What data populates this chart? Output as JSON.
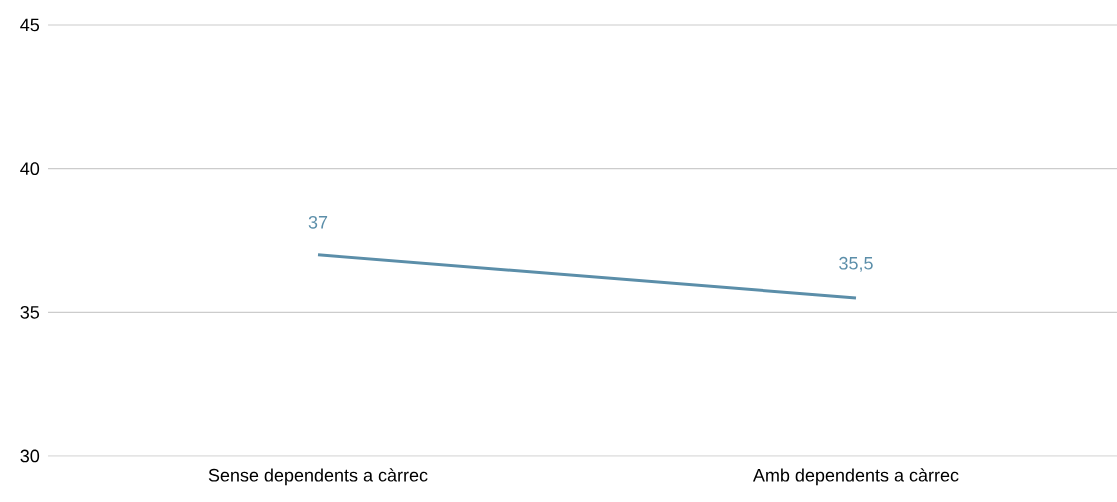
{
  "chart_data": {
    "type": "line",
    "categories": [
      "Sense dependents a càrrec",
      "Amb dependents a càrrec"
    ],
    "series": [
      {
        "color": "#5b8ea9",
        "values": [
          37,
          35.5
        ],
        "value_labels": [
          "37",
          "35,5"
        ]
      }
    ],
    "ylim": [
      30,
      45
    ],
    "yticks": [
      30,
      35,
      40,
      45
    ],
    "grid": "y",
    "marker": "none",
    "line_style": "solid"
  }
}
